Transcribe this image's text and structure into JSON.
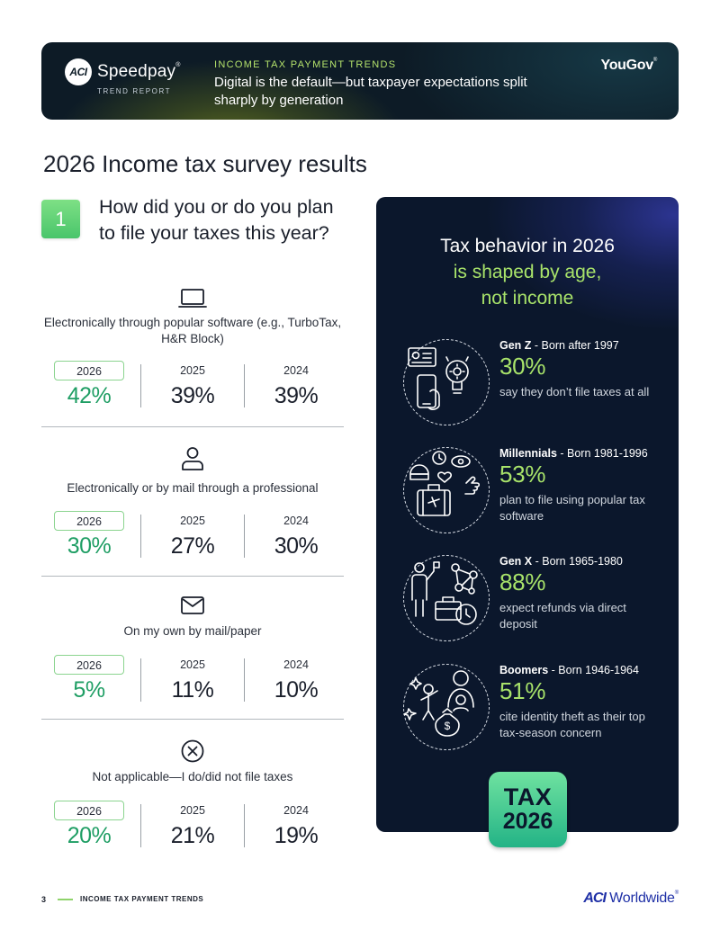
{
  "header": {
    "brand_mark": "ACI",
    "brand_name": "Speedpay",
    "brand_reg": "®",
    "brand_sub": "TREND REPORT",
    "eyebrow": "INCOME TAX PAYMENT TRENDS",
    "headline": "Digital is the default—but taxpayer expectations split sharply by generation",
    "partner": "YouGov",
    "partner_mark": "®"
  },
  "page_title": "2026 Income tax survey results",
  "question": {
    "number": "1",
    "text": "How did you or do you plan to file your taxes this year?",
    "answers": [
      {
        "icon": "laptop-icon",
        "label": "Electronically through popular software (e.g., TurboTax, H&R Block)",
        "stats": [
          {
            "year": "2026",
            "value": "42%"
          },
          {
            "year": "2025",
            "value": "39%"
          },
          {
            "year": "2024",
            "value": "39%"
          }
        ]
      },
      {
        "icon": "person-icon",
        "label": "Electronically or by mail through a professional",
        "stats": [
          {
            "year": "2026",
            "value": "30%"
          },
          {
            "year": "2025",
            "value": "27%"
          },
          {
            "year": "2024",
            "value": "30%"
          }
        ]
      },
      {
        "icon": "envelope-icon",
        "label": "On my own by mail/paper",
        "stats": [
          {
            "year": "2026",
            "value": "5%"
          },
          {
            "year": "2025",
            "value": "11%"
          },
          {
            "year": "2024",
            "value": "10%"
          }
        ]
      },
      {
        "icon": "x-circle-icon",
        "label": "Not applicable—I do/did not file taxes",
        "stats": [
          {
            "year": "2026",
            "value": "20%"
          },
          {
            "year": "2025",
            "value": "21%"
          },
          {
            "year": "2024",
            "value": "19%"
          }
        ]
      }
    ]
  },
  "panel": {
    "title_line1": "Tax behavior in 2026",
    "title_line2": "is shaped by age,",
    "title_line3": "not income",
    "generations": [
      {
        "icon": "phone-lightbulb-icon",
        "name": "Gen Z",
        "born": " - Born after 1997",
        "pct": "30%",
        "desc": "say they don’t file taxes at all"
      },
      {
        "icon": "travel-lifestyle-icon",
        "name": "Millennials",
        "born": " - Born 1981-1996",
        "pct": "53%",
        "desc": "plan to file using popular tax software"
      },
      {
        "icon": "business-network-icon",
        "name": "Gen X",
        "born": " - Born 1965-1980",
        "pct": "88%",
        "desc": "expect refunds via direct deposit"
      },
      {
        "icon": "family-money-icon",
        "name": "Boomers",
        "born": " - Born 1946-1964",
        "pct": "51%",
        "desc": "cite identity theft as their top tax-season concern"
      }
    ],
    "badge_line1": "TAX",
    "badge_line2": "2026"
  },
  "footer": {
    "page_number": "3",
    "section": "INCOME TAX PAYMENT TRENDS",
    "logo_mark": "ACI",
    "logo_text": "Worldwide",
    "logo_reg": "®"
  },
  "colors": {
    "accent_green": "#1f9e64",
    "highlight_lime": "#a8e36a",
    "panel_bg": "#0b172c",
    "footer_logo": "#1e2fa6"
  }
}
